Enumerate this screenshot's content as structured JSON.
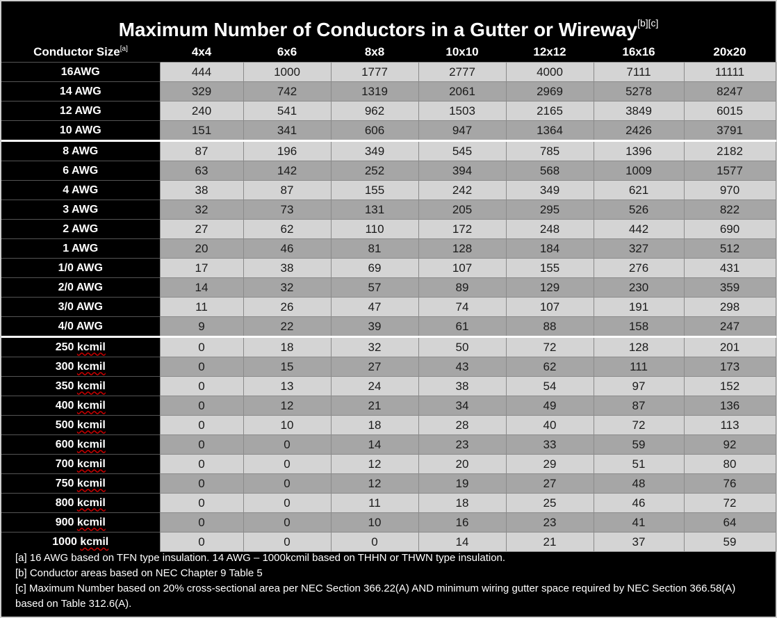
{
  "title": "Maximum Number of Conductors in a Gutter or Wireway",
  "title_refs": "[b][c]",
  "header": {
    "size_label": "Conductor Size",
    "size_ref": "[a]",
    "columns": [
      "4x4",
      "6x6",
      "8x8",
      "10x10",
      "12x12",
      "16x16",
      "20x20"
    ]
  },
  "rows": [
    {
      "size": "16AWG",
      "values": [
        "444",
        "1000",
        "1777",
        "2777",
        "4000",
        "7111",
        "11111"
      ]
    },
    {
      "size": "14 AWG",
      "values": [
        "329",
        "742",
        "1319",
        "2061",
        "2969",
        "5278",
        "8247"
      ]
    },
    {
      "size": "12 AWG",
      "values": [
        "240",
        "541",
        "962",
        "1503",
        "2165",
        "3849",
        "6015"
      ]
    },
    {
      "size": "10 AWG",
      "values": [
        "151",
        "341",
        "606",
        "947",
        "1364",
        "2426",
        "3791"
      ]
    },
    {
      "size": "8 AWG",
      "values": [
        "87",
        "196",
        "349",
        "545",
        "785",
        "1396",
        "2182"
      ]
    },
    {
      "size": "6 AWG",
      "values": [
        "63",
        "142",
        "252",
        "394",
        "568",
        "1009",
        "1577"
      ]
    },
    {
      "size": "4 AWG",
      "values": [
        "38",
        "87",
        "155",
        "242",
        "349",
        "621",
        "970"
      ]
    },
    {
      "size": "3 AWG",
      "values": [
        "32",
        "73",
        "131",
        "205",
        "295",
        "526",
        "822"
      ]
    },
    {
      "size": "2 AWG",
      "values": [
        "27",
        "62",
        "110",
        "172",
        "248",
        "442",
        "690"
      ]
    },
    {
      "size": "1 AWG",
      "values": [
        "20",
        "46",
        "81",
        "128",
        "184",
        "327",
        "512"
      ]
    },
    {
      "size": "1/0 AWG",
      "values": [
        "17",
        "38",
        "69",
        "107",
        "155",
        "276",
        "431"
      ]
    },
    {
      "size": "2/0 AWG",
      "values": [
        "14",
        "32",
        "57",
        "89",
        "129",
        "230",
        "359"
      ]
    },
    {
      "size": "3/0 AWG",
      "values": [
        "11",
        "26",
        "47",
        "74",
        "107",
        "191",
        "298"
      ]
    },
    {
      "size": "4/0 AWG",
      "values": [
        "9",
        "22",
        "39",
        "61",
        "88",
        "158",
        "247"
      ]
    },
    {
      "size": "250 kcmil",
      "values": [
        "0",
        "18",
        "32",
        "50",
        "72",
        "128",
        "201"
      ]
    },
    {
      "size": "300 kcmil",
      "values": [
        "0",
        "15",
        "27",
        "43",
        "62",
        "111",
        "173"
      ]
    },
    {
      "size": "350 kcmil",
      "values": [
        "0",
        "13",
        "24",
        "38",
        "54",
        "97",
        "152"
      ]
    },
    {
      "size": "400 kcmil",
      "values": [
        "0",
        "12",
        "21",
        "34",
        "49",
        "87",
        "136"
      ]
    },
    {
      "size": "500 kcmil",
      "values": [
        "0",
        "10",
        "18",
        "28",
        "40",
        "72",
        "113"
      ]
    },
    {
      "size": "600 kcmil",
      "values": [
        "0",
        "0",
        "14",
        "23",
        "33",
        "59",
        "92"
      ]
    },
    {
      "size": "700 kcmil",
      "values": [
        "0",
        "0",
        "12",
        "20",
        "29",
        "51",
        "80"
      ]
    },
    {
      "size": "750 kcmil",
      "values": [
        "0",
        "0",
        "12",
        "19",
        "27",
        "48",
        "76"
      ]
    },
    {
      "size": "800 kcmil",
      "values": [
        "0",
        "0",
        "11",
        "18",
        "25",
        "46",
        "72"
      ]
    },
    {
      "size": "900 kcmil",
      "values": [
        "0",
        "0",
        "10",
        "16",
        "23",
        "41",
        "64"
      ]
    },
    {
      "size": "1000 kcmil",
      "values": [
        "0",
        "0",
        "0",
        "14",
        "21",
        "37",
        "59"
      ]
    }
  ],
  "notes": [
    "[a] 16 AWG based on TFN type insulation.   14 AWG – 1000kcmil based on THHN or THWN type insulation.",
    "[b] Conductor areas based on NEC Chapter 9 Table 5",
    "[c] Maximum Number based on 20% cross-sectional area per NEC Section 366.22(A) AND minimum wiring gutter space required by NEC Section 366.58(A) based on Table 312.6(A)."
  ],
  "colors": {
    "background": "#000000",
    "cell_light": "#d4d4d4",
    "cell_dark": "#a6a6a6",
    "header_text": "#ffffff"
  }
}
